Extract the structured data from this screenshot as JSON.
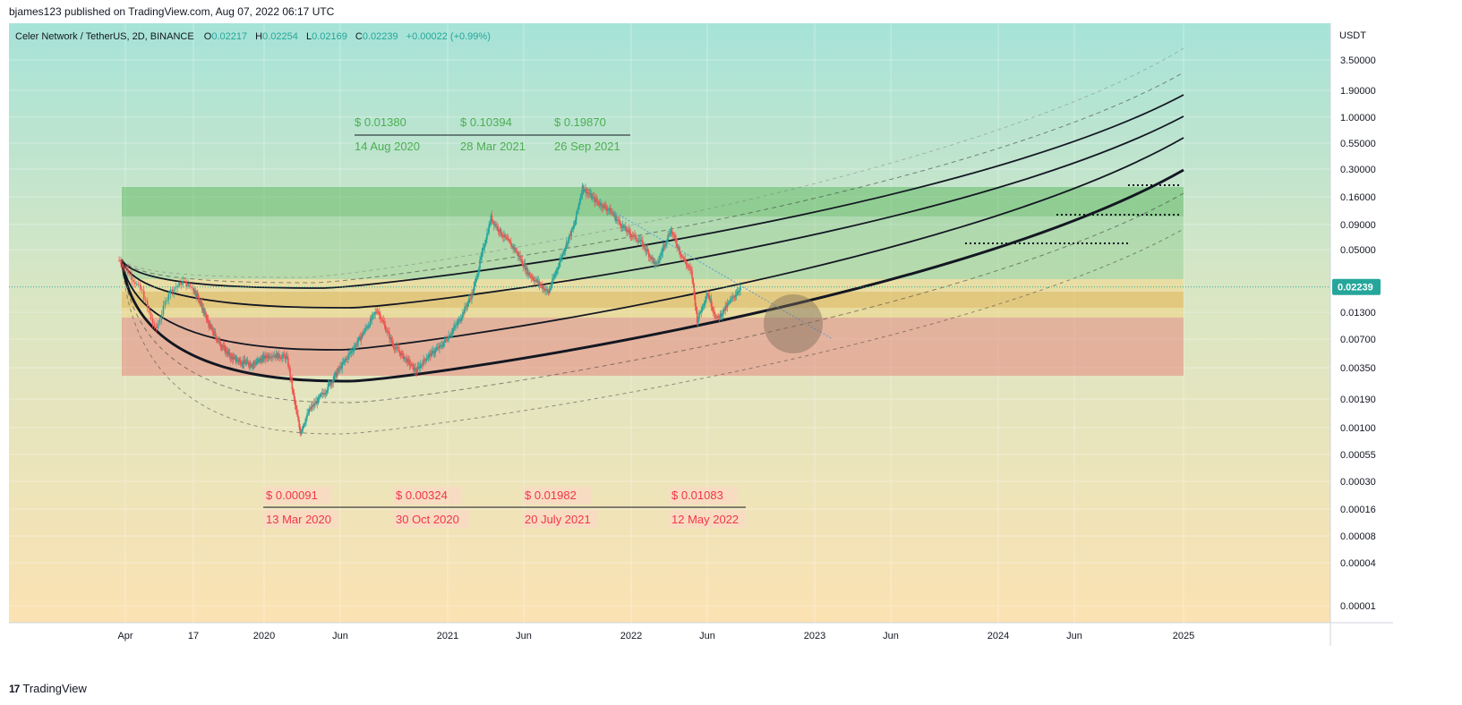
{
  "header": {
    "published": "bjames123 published on TradingView.com, Aug 07, 2022 06:17 UTC"
  },
  "footer": {
    "brand": "TradingView",
    "logo_glyph": "17"
  },
  "symbol_info": {
    "title": "Celer Network / TetherUS, 2D, BINANCE",
    "open_label": "O",
    "open": "0.02217",
    "high_label": "H",
    "high": "0.02254",
    "low_label": "L",
    "low": "0.02169",
    "close_label": "C",
    "close": "0.02239",
    "change": "+0.00022 (+0.99%)"
  },
  "colors": {
    "up": "#26a69a",
    "down": "#ef5350",
    "green_text": "#4caf50",
    "red_text": "#f23645",
    "price_badge": "#26a69a"
  },
  "chart_data": {
    "type": "candlestick",
    "currency": "USDT",
    "y_scale": "log",
    "y_ticks": [
      "3.50000",
      "1.90000",
      "1.00000",
      "0.55000",
      "0.30000",
      "0.16000",
      "0.09000",
      "0.05000",
      "0.01300",
      "0.00700",
      "0.00350",
      "0.00190",
      "0.00100",
      "0.00055",
      "0.00030",
      "0.00016",
      "0.00008",
      "0.00004",
      "0.00001"
    ],
    "x_ticks": [
      "Apr",
      "17",
      "2020",
      "Jun",
      "2021",
      "Jun",
      "2022",
      "Jun",
      "2023",
      "Jun",
      "2024",
      "Jun",
      "2025"
    ],
    "last_price": "0.02239",
    "annotations_high": {
      "prices": [
        "$ 0.01380",
        "$ 0.10394",
        "$ 0.19870"
      ],
      "dates": [
        "14 Aug 2020",
        "28 Mar 2021",
        "26 Sep 2021"
      ]
    },
    "annotations_low": {
      "prices": [
        "$ 0.00091",
        "$ 0.00324",
        "$ 0.01982",
        "$ 0.01083"
      ],
      "dates": [
        "13 Mar 2020",
        "30 Oct 2020",
        "20 July 2021",
        "12 May 2022"
      ]
    },
    "price_path": [
      [
        "2019-03-25",
        0.04
      ],
      [
        "2019-04-20",
        0.02
      ],
      [
        "2019-05-05",
        0.0085
      ],
      [
        "2019-05-20",
        0.02
      ],
      [
        "2019-06-05",
        0.025
      ],
      [
        "2019-07-01",
        0.018
      ],
      [
        "2019-08-01",
        0.0095
      ],
      [
        "2019-09-01",
        0.0062
      ],
      [
        "2019-10-01",
        0.0045
      ],
      [
        "2019-11-01",
        0.004
      ],
      [
        "2019-12-01",
        0.0038
      ],
      [
        "2020-01-15",
        0.0048
      ],
      [
        "2020-02-15",
        0.0045
      ],
      [
        "2020-03-13",
        0.00091
      ],
      [
        "2020-04-01",
        0.0015
      ],
      [
        "2020-05-01",
        0.0022
      ],
      [
        "2020-06-01",
        0.0035
      ],
      [
        "2020-07-01",
        0.006
      ],
      [
        "2020-08-14",
        0.0138
      ],
      [
        "2020-09-15",
        0.006
      ],
      [
        "2020-10-30",
        0.00324
      ],
      [
        "2020-11-20",
        0.0045
      ],
      [
        "2020-12-20",
        0.006
      ],
      [
        "2021-01-20",
        0.01
      ],
      [
        "2021-02-20",
        0.02
      ],
      [
        "2021-03-28",
        0.10394
      ],
      [
        "2021-04-20",
        0.07
      ],
      [
        "2021-05-15",
        0.05
      ],
      [
        "2021-06-10",
        0.03
      ],
      [
        "2021-07-20",
        0.01982
      ],
      [
        "2021-08-20",
        0.05
      ],
      [
        "2021-09-10",
        0.09
      ],
      [
        "2021-09-26",
        0.1987
      ],
      [
        "2021-10-20",
        0.15
      ],
      [
        "2021-11-20",
        0.12
      ],
      [
        "2021-12-20",
        0.08
      ],
      [
        "2022-01-20",
        0.06
      ],
      [
        "2022-02-20",
        0.035
      ],
      [
        "2022-03-20",
        0.08
      ],
      [
        "2022-04-10",
        0.045
      ],
      [
        "2022-05-01",
        0.03
      ],
      [
        "2022-05-12",
        0.01083
      ],
      [
        "2022-06-01",
        0.02
      ],
      [
        "2022-06-20",
        0.011
      ],
      [
        "2022-07-15",
        0.016
      ],
      [
        "2022-08-06",
        0.02239
      ]
    ]
  }
}
